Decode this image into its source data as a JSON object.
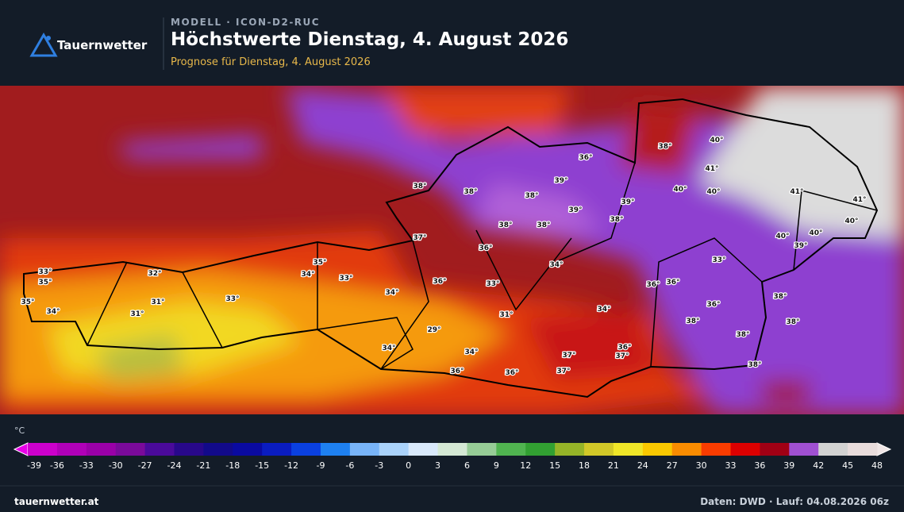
{
  "header": {
    "brand": "Tauernwetter",
    "model": "MODELL · ICON-D2-RUC",
    "title": "Höchstwerte Dienstag, 4. August 2026",
    "subtitle": "Prognose für Dienstag, 4. August 2026"
  },
  "map": {
    "labels": [
      "38°",
      "40°",
      "36°",
      "41°",
      "39°",
      "38°",
      "38°",
      "38°",
      "40°",
      "40°",
      "41°",
      "41°",
      "39°",
      "39°",
      "38°",
      "40°",
      "38°",
      "38°",
      "40°",
      "40°",
      "39°",
      "37°",
      "36°",
      "34°",
      "33°",
      "33°",
      "32°",
      "35°",
      "34°",
      "33°",
      "35°",
      "36°",
      "33°",
      "36°",
      "36°",
      "34°",
      "33°",
      "31°",
      "35°",
      "36°",
      "38°",
      "34°",
      "31°",
      "34°",
      "31°",
      "38°",
      "38°",
      "29°",
      "38°",
      "36°",
      "34°",
      "34°",
      "37°",
      "37°",
      "38°",
      "36°",
      "36°",
      "37°"
    ]
  },
  "legend": {
    "unit": "°C",
    "ticks": [
      -39,
      -36,
      -33,
      -30,
      -27,
      -24,
      -21,
      -18,
      -15,
      -12,
      -9,
      -6,
      -3,
      0,
      3,
      6,
      9,
      12,
      15,
      18,
      21,
      24,
      27,
      30,
      33,
      36,
      39,
      42,
      45,
      48
    ],
    "colors": [
      "#e800e8",
      "#cc00cc",
      "#b000b8",
      "#9a00a8",
      "#7a0a9a",
      "#4a0a9a",
      "#28088a",
      "#120a8a",
      "#0a0aa0",
      "#0a1cc0",
      "#0a40e0",
      "#1e80f0",
      "#78b4f8",
      "#aad2fa",
      "#d8e8fa",
      "#d4e8d4",
      "#96cc96",
      "#50b450",
      "#32a032",
      "#96b428",
      "#d2c828",
      "#f0e628",
      "#fac800",
      "#fa8c00",
      "#fa3c00",
      "#dc0000",
      "#a00014",
      "#a050d2",
      "#d2d2d2",
      "#e8dcdc",
      "#f0e6e6"
    ]
  },
  "footer": {
    "site": "tauernwetter.at",
    "run": "Daten: DWD · Lauf: 04.08.2026 06z"
  }
}
